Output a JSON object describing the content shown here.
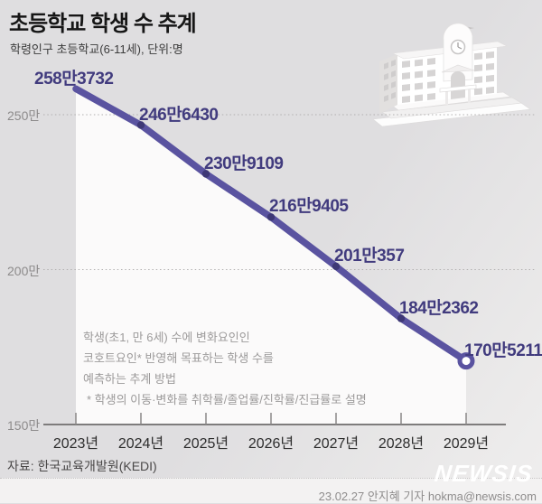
{
  "header": {
    "title": "초등학교 학생 수 추계",
    "subtitle": "학령인구 초등학교(6-11세), 단위:명"
  },
  "chart_data": {
    "type": "line",
    "title": "초등학교 학생 수 추계",
    "unit": "명",
    "categories": [
      "2023년",
      "2024년",
      "2025년",
      "2026년",
      "2027년",
      "2028년",
      "2029년"
    ],
    "values": [
      2583732,
      2466430,
      2309109,
      2169405,
      2010357,
      1842362,
      1705211
    ],
    "point_labels": [
      "258만3732",
      "246만6430",
      "230만9109",
      "216만9405",
      "201만357",
      "184만2362",
      "170만5211"
    ],
    "y_ticks": [
      "250만",
      "200만",
      "150만"
    ],
    "y_tick_values": [
      2500000,
      2000000,
      1500000
    ],
    "ylim": [
      1500000,
      2600000
    ],
    "grid": "dotted horizontal gridlines at 250만 and 200만, solid baseline at 150만",
    "legend": "none",
    "xlabel": "",
    "ylabel": "명"
  },
  "annotation": {
    "lines": [
      "학생(초1, 만 6세) 수에 변화요인인",
      "코호트요인* 반영해 목표하는 학생 수를",
      "예측하는 추계 방법",
      "* 학생의 이동·변화를 취학률/졸업률/진학률/진급률로 설명"
    ]
  },
  "footer": {
    "source": "자료: 한국교육개발원(KEDI)",
    "credit": "23.02.27 안지혜 기자 hokma@newsis.com",
    "logo_text": "NEWSIS"
  },
  "icons": {
    "building": "school-building-icon"
  },
  "colors": {
    "line": "#5a53a0",
    "dot": "#3e3876",
    "point_label": "#413b7e",
    "background": "#e0dfe1",
    "area_fill": "#fbfafa",
    "axis": "#7e7c7c",
    "gridline": "#b1afaf"
  }
}
